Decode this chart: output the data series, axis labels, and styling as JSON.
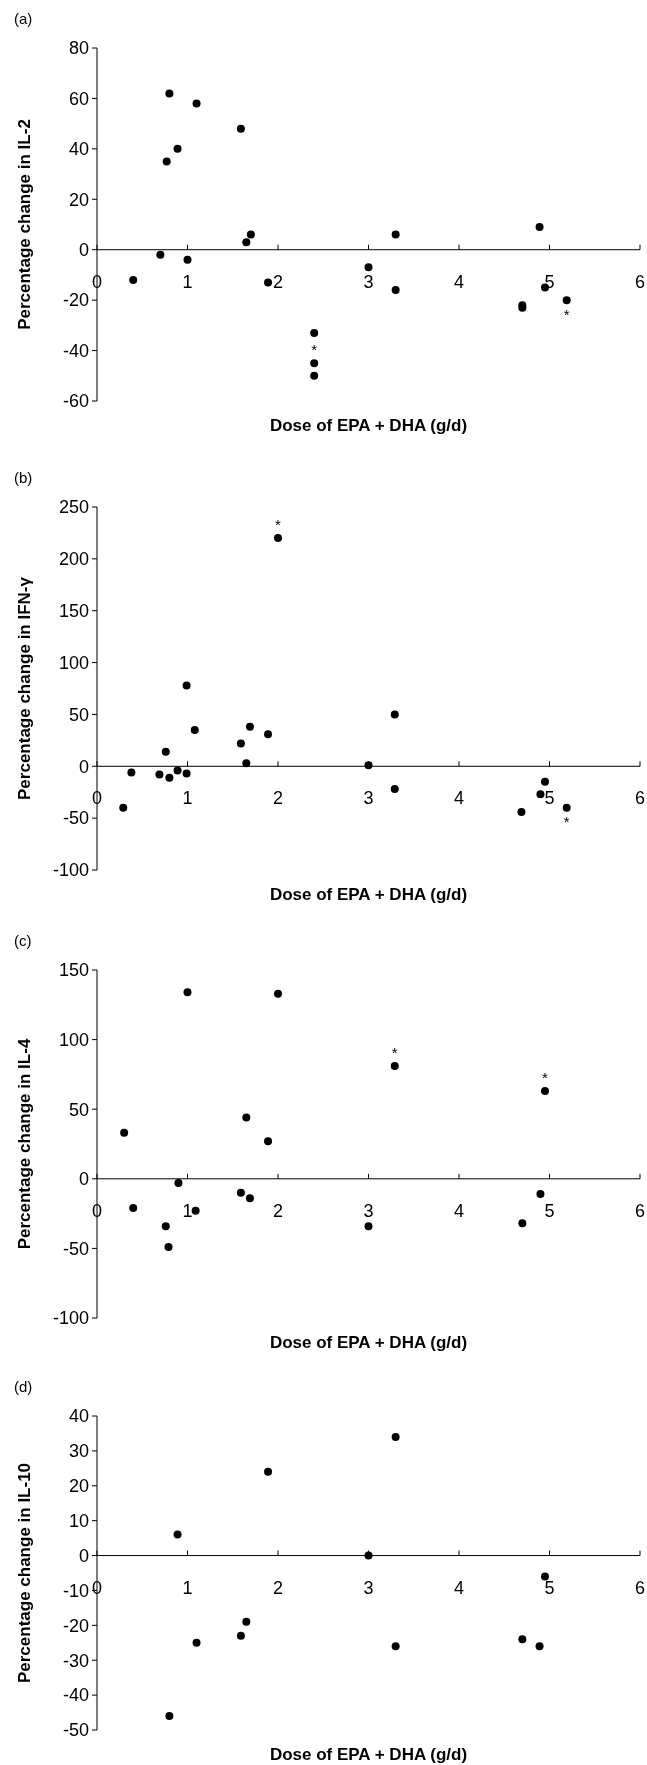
{
  "chart_data": [
    {
      "type": "scatter",
      "title": "(a)",
      "xlabel": "Dose of EPA + DHA (g/d)",
      "ylabel": "Percentage change in IL-2",
      "color": "#000000",
      "marker": "circle",
      "xlim": [
        0,
        6
      ],
      "xticks": [
        0,
        1,
        2,
        3,
        4,
        5,
        6
      ],
      "ylim": [
        -60,
        80
      ],
      "yticks": [
        -60,
        -40,
        -20,
        0,
        20,
        40,
        60,
        80
      ],
      "x": [
        0.4,
        0.7,
        0.77,
        0.8,
        0.89,
        1.0,
        1.1,
        1.59,
        1.65,
        1.7,
        1.89,
        2.4,
        2.4,
        2.4,
        3.0,
        3.3,
        3.3,
        4.7,
        4.7,
        4.89,
        4.95,
        5.19
      ],
      "values": [
        -12,
        -2,
        35,
        62,
        40,
        -4,
        58,
        48,
        3,
        6,
        -13,
        -33,
        -45,
        -50,
        -7,
        6,
        -16,
        -22,
        -23,
        9,
        -15,
        -20
      ],
      "annotations": [
        {
          "text": "*",
          "x": 2.4,
          "y": -45
        },
        {
          "text": "*",
          "x": 5.19,
          "y": -20
        }
      ]
    },
    {
      "type": "scatter",
      "title": "(b)",
      "xlabel": "Dose of EPA + DHA (g/d)",
      "ylabel": "Percentage change in IFN-γ",
      "color": "#000000",
      "marker": "circle",
      "xlim": [
        0,
        6
      ],
      "xticks": [
        0,
        1,
        2,
        3,
        4,
        5,
        6
      ],
      "ylim": [
        -100,
        250
      ],
      "yticks": [
        -100,
        -50,
        0,
        50,
        100,
        150,
        200,
        250
      ],
      "x": [
        0.29,
        0.38,
        0.69,
        0.76,
        0.8,
        0.89,
        0.99,
        0.99,
        1.08,
        1.59,
        1.65,
        1.69,
        1.89,
        2.0,
        3.0,
        3.29,
        3.29,
        4.69,
        4.9,
        4.95,
        5.19
      ],
      "values": [
        -40,
        -6,
        -8,
        14,
        -11,
        -4,
        78,
        -7,
        35,
        22,
        3,
        38,
        31,
        220,
        1,
        50,
        -22,
        -44,
        -27,
        -15,
        -40
      ],
      "annotations": [
        {
          "text": "*",
          "x": 2.0,
          "y": 220
        },
        {
          "text": "*",
          "x": 5.19,
          "y": -40
        }
      ]
    },
    {
      "type": "scatter",
      "title": "(c)",
      "xlabel": "Dose of EPA + DHA (g/d)",
      "ylabel": "Percentage change in IL-4",
      "color": "#000000",
      "marker": "circle",
      "xlim": [
        0,
        6
      ],
      "xticks": [
        0,
        1,
        2,
        3,
        4,
        5,
        6
      ],
      "ylim": [
        -100,
        150
      ],
      "yticks": [
        -100,
        -50,
        0,
        50,
        100,
        150
      ],
      "x": [
        0.3,
        0.4,
        0.76,
        0.79,
        0.9,
        1.0,
        1.09,
        1.59,
        1.65,
        1.69,
        1.89,
        2.0,
        3.0,
        3.29,
        4.7,
        4.9,
        4.95
      ],
      "values": [
        33,
        -21,
        -34,
        -49,
        -3,
        134,
        -23,
        -10,
        44,
        -14,
        27,
        133,
        -34,
        81,
        -32,
        -11,
        63
      ],
      "annotations": [
        {
          "text": "*",
          "x": 3.29,
          "y": 81
        },
        {
          "text": "*",
          "x": 4.95,
          "y": 63
        }
      ]
    },
    {
      "type": "scatter",
      "title": "(d)",
      "xlabel": "Dose of EPA + DHA (g/d)",
      "ylabel": "Percentage change in IL-10",
      "color": "#000000",
      "marker": "circle",
      "xlim": [
        0,
        6
      ],
      "xticks": [
        0,
        1,
        2,
        3,
        4,
        5,
        6
      ],
      "ylim": [
        -50,
        40
      ],
      "yticks": [
        -50,
        -40,
        -30,
        -20,
        -10,
        0,
        10,
        20,
        30,
        40
      ],
      "x": [
        0.8,
        0.89,
        1.1,
        1.59,
        1.65,
        1.89,
        3.0,
        3.3,
        3.3,
        4.7,
        4.89,
        4.95
      ],
      "values": [
        -46,
        6,
        -25,
        -23,
        -19,
        24,
        0,
        34,
        -26,
        -24,
        -26,
        -6
      ]
    }
  ]
}
